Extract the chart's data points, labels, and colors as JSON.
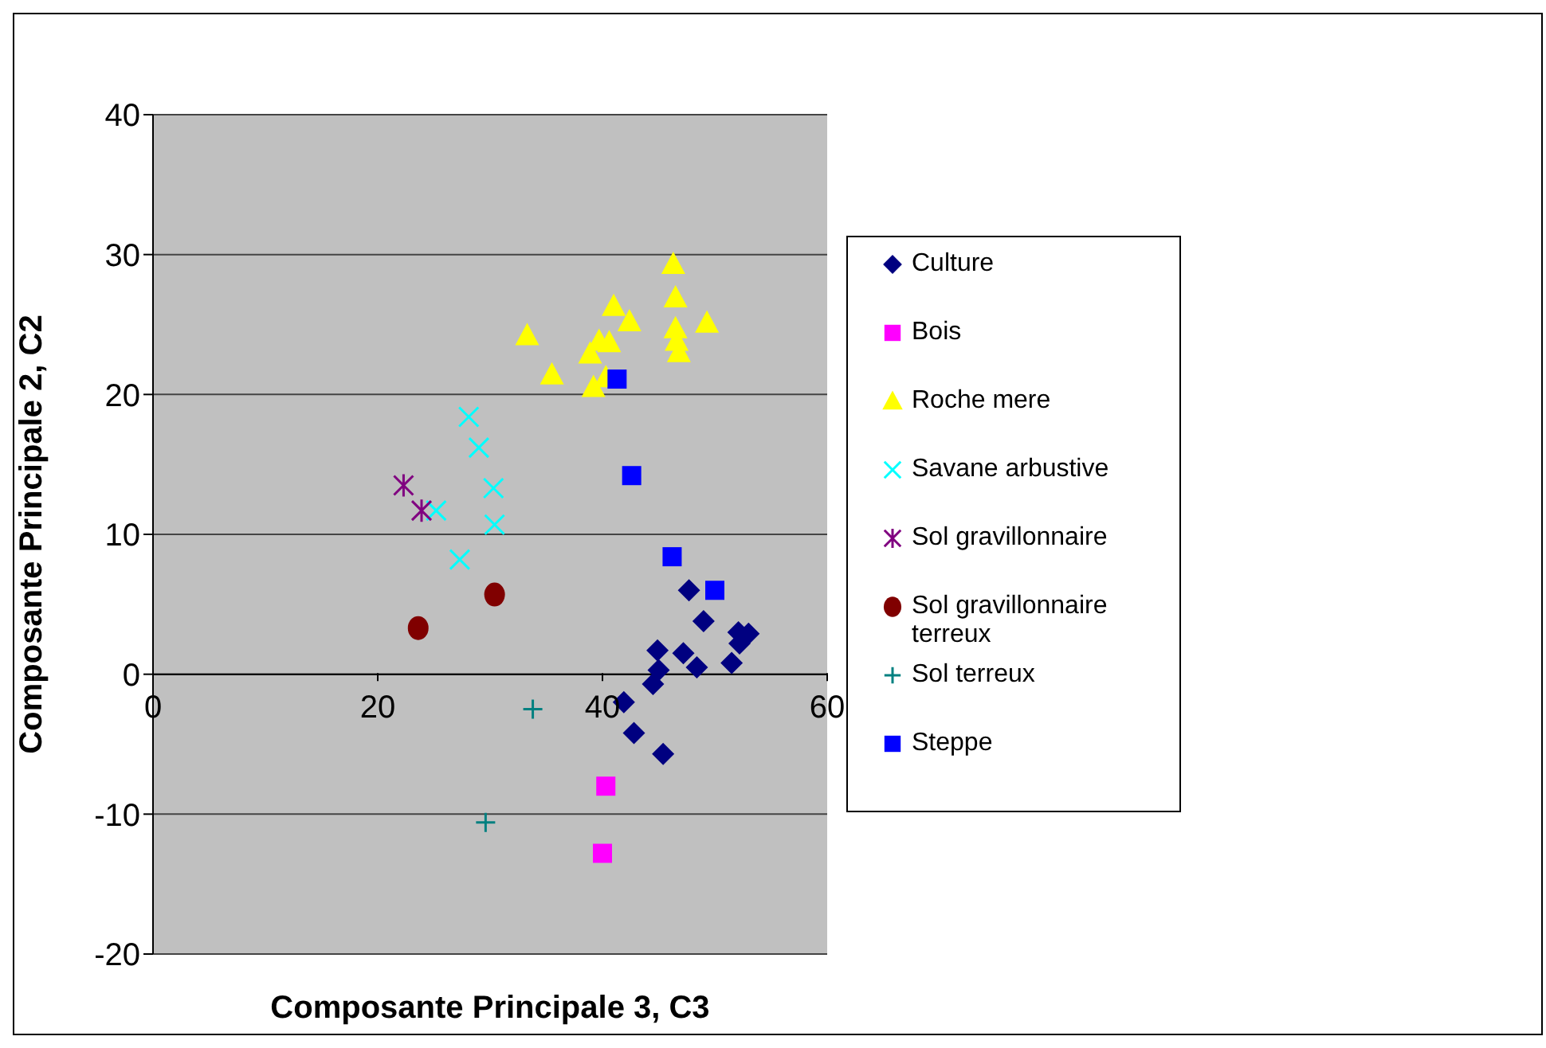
{
  "chart_data": {
    "type": "scatter",
    "xlabel": "Composante Principale 3, C3",
    "ylabel": "Composante Principale 2, C2",
    "xlim": [
      0,
      60
    ],
    "xticks": [
      0,
      20,
      40,
      60
    ],
    "ylim": [
      -20,
      40
    ],
    "yticks": [
      -20,
      -10,
      0,
      10,
      20,
      30,
      40
    ],
    "grid": "y",
    "legend": "right",
    "series": [
      {
        "name": "Culture",
        "color": "#000080",
        "marker": "diamond",
        "x": [
          47.7,
          49.0,
          44.9,
          47.2,
          48.4,
          51.5,
          52.1,
          53.0,
          52.2,
          45.0,
          44.5,
          41.9,
          42.8,
          45.4
        ],
        "values": [
          6.0,
          3.8,
          1.7,
          1.5,
          0.5,
          0.8,
          3.0,
          2.9,
          2.2,
          0.3,
          -0.7,
          -2.0,
          -4.2,
          -5.7
        ]
      },
      {
        "name": "Bois",
        "color": "#ff00ff",
        "marker": "square",
        "x": [
          40.3,
          40.0
        ],
        "values": [
          -8.0,
          -12.8
        ]
      },
      {
        "name": "Roche mere",
        "color": "#ffff00",
        "marker": "triangle",
        "x": [
          46.3,
          46.5,
          41.0,
          42.4,
          49.3,
          33.3,
          46.5,
          46.6,
          46.8,
          39.7,
          40.6,
          38.9,
          35.5,
          40.3,
          39.2
        ],
        "values": [
          29.3,
          26.9,
          26.3,
          25.2,
          25.1,
          24.2,
          24.7,
          23.8,
          23.0,
          23.8,
          23.7,
          22.9,
          21.4,
          21.2,
          20.5
        ]
      },
      {
        "name": "Savane arbustive",
        "color": "#00ffff",
        "marker": "x",
        "x": [
          28.1,
          29.0,
          30.3,
          30.4,
          25.2,
          27.3
        ],
        "values": [
          18.4,
          16.2,
          13.3,
          10.7,
          11.7,
          8.2
        ]
      },
      {
        "name": "Sol gravillonnaire",
        "color": "#800080",
        "marker": "cross",
        "x": [
          22.3,
          23.9
        ],
        "values": [
          13.5,
          11.7
        ]
      },
      {
        "name": "Sol gravillonnaire terreux",
        "color": "#800000",
        "marker": "circle",
        "x": [
          23.6,
          30.4
        ],
        "values": [
          3.3,
          5.7
        ]
      },
      {
        "name": "Sol terreux",
        "color": "#008080",
        "marker": "plus",
        "x": [
          33.8,
          29.6
        ],
        "values": [
          -2.5,
          -10.6
        ]
      },
      {
        "name": "Steppe",
        "color": "#0000ff",
        "marker": "square",
        "x": [
          41.3,
          42.6,
          46.2,
          50.0
        ],
        "values": [
          21.1,
          14.2,
          8.4,
          6.0
        ]
      }
    ]
  }
}
